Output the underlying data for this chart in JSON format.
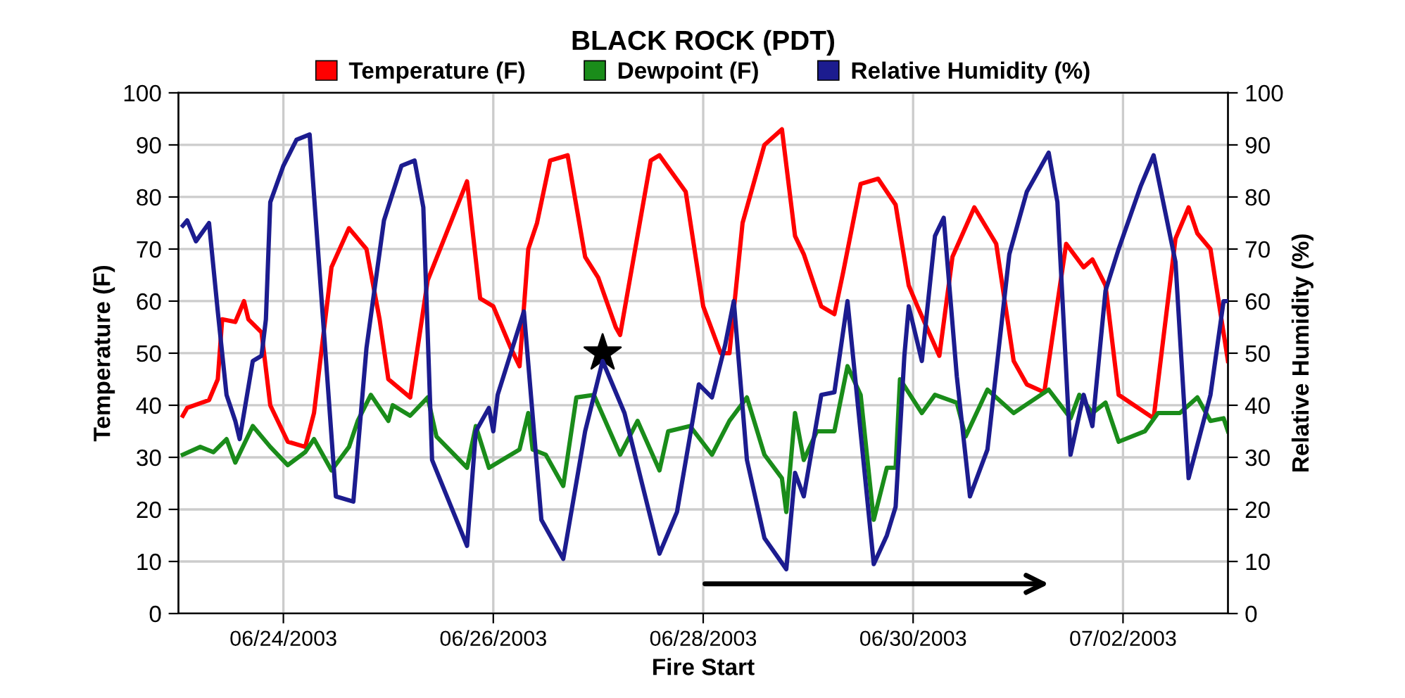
{
  "chart_data": {
    "type": "line",
    "title": "BLACK ROCK (PDT)",
    "xlabel": "Fire Start",
    "ylabel": "Temperature (F)",
    "y2label": "Relative Humidity (%)",
    "xlim": [
      "2003-06-23T00:00",
      "2003-07-03T00:00"
    ],
    "xticks": [
      {
        "value": "2003-06-24",
        "label": "06/24/2003"
      },
      {
        "value": "2003-06-26",
        "label": "06/26/2003"
      },
      {
        "value": "2003-06-28",
        "label": "06/28/2003"
      },
      {
        "value": "2003-06-30",
        "label": "06/30/2003"
      },
      {
        "value": "2003-07-02",
        "label": "07/02/2003"
      }
    ],
    "ylim": [
      0,
      100
    ],
    "yticks": [
      0,
      10,
      20,
      30,
      40,
      50,
      60,
      70,
      80,
      90,
      100
    ],
    "y2lim": [
      0,
      100
    ],
    "y2ticks": [
      0,
      10,
      20,
      30,
      40,
      50,
      60,
      70,
      80,
      90,
      100
    ],
    "grid": true,
    "legend": "top",
    "line_style": "solid",
    "marker": "none",
    "series": [
      {
        "name": "Temperature (F)",
        "color": "#ff0000",
        "x": [
          "2003-06-23T01:00",
          "2003-06-23T02:00",
          "2003-06-23T07:00",
          "2003-06-23T09:00",
          "2003-06-23T10:00",
          "2003-06-23T13:00",
          "2003-06-23T15:00",
          "2003-06-23T16:00",
          "2003-06-23T19:00",
          "2003-06-23T21:00",
          "2003-06-24T01:00",
          "2003-06-24T05:00",
          "2003-06-24T07:00",
          "2003-06-24T11:00",
          "2003-06-24T15:00",
          "2003-06-24T17:00",
          "2003-06-24T19:00",
          "2003-06-24T22:00",
          "2003-06-25T00:00",
          "2003-06-25T05:00",
          "2003-06-25T09:00",
          "2003-06-25T18:00",
          "2003-06-25T21:00",
          "2003-06-26T00:00",
          "2003-06-26T04:00",
          "2003-06-26T06:00",
          "2003-06-26T08:00",
          "2003-06-26T10:00",
          "2003-06-26T13:00",
          "2003-06-26T17:00",
          "2003-06-26T21:00",
          "2003-06-27T00:00",
          "2003-06-27T04:00",
          "2003-06-27T05:00",
          "2003-06-27T12:00",
          "2003-06-27T14:00",
          "2003-06-27T20:00",
          "2003-06-28T00:00",
          "2003-06-28T04:00",
          "2003-06-28T06:00",
          "2003-06-28T09:00",
          "2003-06-28T14:00",
          "2003-06-28T18:00",
          "2003-06-28T21:00",
          "2003-06-28T23:00",
          "2003-06-29T03:00",
          "2003-06-29T06:00",
          "2003-06-29T08:00",
          "2003-06-29T12:00",
          "2003-06-29T16:00",
          "2003-06-29T20:00",
          "2003-06-29T23:00",
          "2003-06-30T01:00",
          "2003-06-30T06:00",
          "2003-06-30T09:00",
          "2003-06-30T14:00",
          "2003-06-30T19:00",
          "2003-06-30T23:00",
          "2003-07-01T02:00",
          "2003-07-01T06:00",
          "2003-07-01T11:00",
          "2003-07-01T15:00",
          "2003-07-01T17:00",
          "2003-07-01T20:00",
          "2003-07-01T23:00",
          "2003-07-02T07:00",
          "2003-07-02T12:00",
          "2003-07-02T15:00",
          "2003-07-02T17:00",
          "2003-07-02T20:00",
          "2003-07-03T00:00"
        ],
        "values": [
          38,
          39.5,
          41,
          45,
          56.5,
          56,
          60,
          56.5,
          54,
          40,
          33,
          32,
          38.5,
          66.5,
          74,
          72,
          70,
          56.5,
          45,
          41.5,
          64,
          83,
          60.5,
          59,
          51,
          47.5,
          70,
          75,
          87,
          88,
          68.5,
          64.5,
          55,
          53.5,
          87,
          88,
          81,
          59,
          50,
          50,
          75,
          90,
          93,
          72.5,
          69,
          59,
          57.5,
          65.5,
          82.5,
          83.5,
          78.5,
          63,
          59,
          49.5,
          68.5,
          78,
          71,
          48.5,
          44,
          42.5,
          71,
          66.5,
          68,
          63,
          42,
          37.5,
          72,
          78,
          73,
          70,
          48.5
        ]
      },
      {
        "name": "Dewpoint (F)",
        "color": "#1a8c1a",
        "x": [
          "2003-06-23T01:00",
          "2003-06-23T05:00",
          "2003-06-23T08:00",
          "2003-06-23T11:00",
          "2003-06-23T13:00",
          "2003-06-23T17:00",
          "2003-06-23T21:00",
          "2003-06-24T01:00",
          "2003-06-24T05:00",
          "2003-06-24T07:00",
          "2003-06-24T11:00",
          "2003-06-24T15:00",
          "2003-06-24T17:00",
          "2003-06-24T20:00",
          "2003-06-25T00:00",
          "2003-06-25T01:00",
          "2003-06-25T05:00",
          "2003-06-25T09:00",
          "2003-06-25T11:00",
          "2003-06-25T18:00",
          "2003-06-25T20:00",
          "2003-06-25T23:00",
          "2003-06-26T06:00",
          "2003-06-26T08:00",
          "2003-06-26T09:00",
          "2003-06-26T12:00",
          "2003-06-26T16:00",
          "2003-06-26T19:00",
          "2003-06-26T23:00",
          "2003-06-27T05:00",
          "2003-06-27T09:00",
          "2003-06-27T14:00",
          "2003-06-27T16:00",
          "2003-06-27T21:00",
          "2003-06-28T02:00",
          "2003-06-28T06:00",
          "2003-06-28T10:00",
          "2003-06-28T14:00",
          "2003-06-28T18:00",
          "2003-06-28T19:00",
          "2003-06-28T21:00",
          "2003-06-28T23:00",
          "2003-06-29T02:00",
          "2003-06-29T06:00",
          "2003-06-29T09:00",
          "2003-06-29T12:00",
          "2003-06-29T15:00",
          "2003-06-29T18:00",
          "2003-06-29T20:00",
          "2003-06-29T21:00",
          "2003-06-30T02:00",
          "2003-06-30T05:00",
          "2003-06-30T10:00",
          "2003-06-30T12:00",
          "2003-06-30T17:00",
          "2003-06-30T23:00",
          "2003-07-01T07:00",
          "2003-07-01T12:00",
          "2003-07-01T14:00",
          "2003-07-01T17:00",
          "2003-07-01T20:00",
          "2003-07-01T23:00",
          "2003-07-02T05:00",
          "2003-07-02T08:00",
          "2003-07-02T13:00",
          "2003-07-02T17:00",
          "2003-07-02T20:00",
          "2003-07-02T23:00",
          "2003-07-03T00:00"
        ],
        "values": [
          30.5,
          32,
          31,
          33.5,
          29,
          36,
          32,
          28.5,
          31,
          33.5,
          27.5,
          32,
          37,
          42,
          37,
          40,
          38,
          41.5,
          34,
          28,
          36,
          28,
          31.5,
          38.5,
          31.5,
          30.5,
          24.5,
          41.5,
          42,
          30.5,
          37,
          27.5,
          35,
          36,
          30.5,
          37,
          41.5,
          30.5,
          26,
          19.5,
          38.5,
          29.5,
          35,
          35,
          47.5,
          42,
          18,
          28,
          28,
          45,
          38.5,
          42,
          40.5,
          34,
          43,
          38.5,
          43,
          37.5,
          42,
          38.5,
          40.5,
          33,
          35,
          38.5,
          38.5,
          41.5,
          37,
          37.5,
          35
        ]
      },
      {
        "name": "Relative Humidity (%)",
        "color": "#1c1c8f",
        "axis": "y2",
        "x": [
          "2003-06-23T01:00",
          "2003-06-23T02:00",
          "2003-06-23T04:00",
          "2003-06-23T07:00",
          "2003-06-23T09:00",
          "2003-06-23T11:00",
          "2003-06-23T13:00",
          "2003-06-23T14:00",
          "2003-06-23T17:00",
          "2003-06-23T19:00",
          "2003-06-23T20:00",
          "2003-06-23T21:00",
          "2003-06-24T00:00",
          "2003-06-24T03:00",
          "2003-06-24T06:00",
          "2003-06-24T12:00",
          "2003-06-24T16:00",
          "2003-06-24T19:00",
          "2003-06-24T23:00",
          "2003-06-25T03:00",
          "2003-06-25T06:00",
          "2003-06-25T08:00",
          "2003-06-25T10:00",
          "2003-06-25T18:00",
          "2003-06-25T20:00",
          "2003-06-25T23:00",
          "2003-06-26T00:00",
          "2003-06-26T01:00",
          "2003-06-26T07:00",
          "2003-06-26T11:00",
          "2003-06-26T16:00",
          "2003-06-26T21:00",
          "2003-06-27T01:00",
          "2003-06-27T06:00",
          "2003-06-27T14:00",
          "2003-06-27T18:00",
          "2003-06-27T23:00",
          "2003-06-28T02:00",
          "2003-06-28T05:00",
          "2003-06-28T07:00",
          "2003-06-28T10:00",
          "2003-06-28T14:00",
          "2003-06-28T19:00",
          "2003-06-28T21:00",
          "2003-06-28T23:00",
          "2003-06-29T03:00",
          "2003-06-29T06:00",
          "2003-06-29T09:00",
          "2003-06-29T15:00",
          "2003-06-29T18:00",
          "2003-06-29T20:00",
          "2003-06-29T22:00",
          "2003-06-29T23:00",
          "2003-06-30T02:00",
          "2003-06-30T05:00",
          "2003-06-30T07:00",
          "2003-06-30T10:00",
          "2003-06-30T13:00",
          "2003-06-30T17:00",
          "2003-06-30T22:00",
          "2003-07-01T02:00",
          "2003-07-01T07:00",
          "2003-07-01T09:00",
          "2003-07-01T12:00",
          "2003-07-01T15:00",
          "2003-07-01T17:00",
          "2003-07-01T20:00",
          "2003-07-01T23:00",
          "2003-07-02T04:00",
          "2003-07-02T07:00",
          "2003-07-02T12:00",
          "2003-07-02T15:00",
          "2003-07-02T20:00",
          "2003-07-02T23:00",
          "2003-07-03T00:00"
        ],
        "values": [
          74.5,
          75.5,
          71.5,
          75,
          58,
          42,
          37,
          33.5,
          48.5,
          49.5,
          56.5,
          79,
          86,
          91,
          92,
          22.5,
          21.5,
          51,
          75.5,
          86,
          87,
          78,
          29.5,
          13,
          35,
          39.5,
          35,
          42,
          58,
          18,
          10.5,
          35,
          48.5,
          38.5,
          11.5,
          19.5,
          44,
          41.5,
          51.5,
          60,
          29.5,
          14.5,
          8.5,
          27,
          22.5,
          42,
          42.5,
          60,
          9.5,
          15,
          20.5,
          49.5,
          59,
          48.5,
          72.5,
          76,
          45.5,
          22.5,
          31.5,
          69,
          81,
          88.5,
          79,
          30.5,
          42,
          36,
          62,
          70,
          82,
          88,
          67.5,
          26,
          42,
          60,
          60
        ]
      },
      {
        "type": "scatter",
        "marker": "star",
        "color": "#000000",
        "x": [
          "2003-06-27T01:00"
        ],
        "values": [
          50
        ]
      }
    ]
  }
}
